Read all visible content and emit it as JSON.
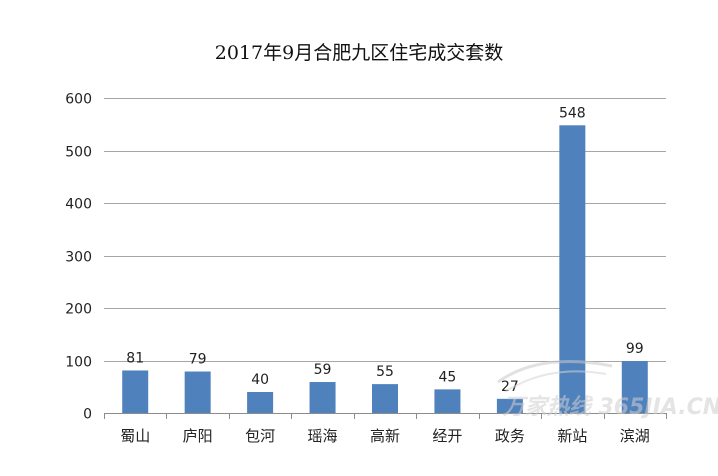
{
  "chart_data": {
    "type": "bar",
    "title": "2017年9月合肥九区住宅成交套数",
    "categories": [
      "蜀山",
      "庐阳",
      "包河",
      "瑶海",
      "高新",
      "经开",
      "政务",
      "新站",
      "滨湖"
    ],
    "values": [
      81,
      79,
      40,
      59,
      55,
      45,
      27,
      548,
      99
    ],
    "ylim": [
      0,
      600
    ],
    "yticks": [
      0,
      100,
      200,
      300,
      400,
      500,
      600
    ],
    "grid": true,
    "bar_color": "#4F81BD",
    "xlabel": "",
    "ylabel": ""
  },
  "watermark": {
    "text": "万家热线 365JIA.CN"
  }
}
